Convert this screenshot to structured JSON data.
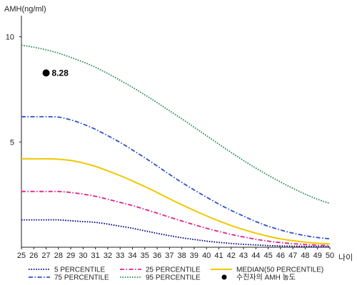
{
  "chart_data": {
    "type": "line",
    "ylabel": "AMH(ng/ml)",
    "xlabel": "나이",
    "x": [
      25,
      26,
      27,
      28,
      29,
      30,
      31,
      32,
      33,
      34,
      35,
      36,
      37,
      38,
      39,
      40,
      41,
      42,
      43,
      44,
      45,
      46,
      47,
      48,
      49,
      50
    ],
    "xlim": [
      25,
      50
    ],
    "ylim": [
      0,
      11
    ],
    "yticks": [
      5,
      10
    ],
    "grid": false,
    "legend_position": "bottom",
    "series": [
      {
        "name": "5 PERCENTILE",
        "color": "#000080",
        "dash": "dotted",
        "values": [
          1.3,
          1.3,
          1.3,
          1.3,
          1.26,
          1.22,
          1.18,
          1.1,
          1.0,
          0.9,
          0.78,
          0.66,
          0.55,
          0.45,
          0.37,
          0.29,
          0.23,
          0.18,
          0.14,
          0.11,
          0.08,
          0.06,
          0.05,
          0.04,
          0.03,
          0.03
        ]
      },
      {
        "name": "25 PERCENTILE",
        "color": "#e0208a",
        "dash": "dash-dot",
        "values": [
          2.65,
          2.65,
          2.65,
          2.65,
          2.6,
          2.52,
          2.42,
          2.28,
          2.13,
          1.98,
          1.8,
          1.62,
          1.43,
          1.25,
          1.07,
          0.9,
          0.75,
          0.61,
          0.49,
          0.38,
          0.29,
          0.22,
          0.17,
          0.13,
          0.1,
          0.08
        ]
      },
      {
        "name": "MEDIAN(50 PERCENTILE)",
        "color": "#f0c800",
        "dash": "solid",
        "values": [
          4.2,
          4.2,
          4.2,
          4.18,
          4.12,
          4.0,
          3.84,
          3.63,
          3.4,
          3.15,
          2.88,
          2.6,
          2.3,
          2.02,
          1.75,
          1.49,
          1.25,
          1.03,
          0.84,
          0.67,
          0.52,
          0.4,
          0.31,
          0.24,
          0.19,
          0.16
        ]
      },
      {
        "name": "75 PERCENTILE",
        "color": "#3050c8",
        "dash": "dash-dot",
        "values": [
          6.2,
          6.2,
          6.2,
          6.18,
          6.05,
          5.85,
          5.6,
          5.3,
          4.98,
          4.62,
          4.25,
          3.86,
          3.46,
          3.08,
          2.72,
          2.38,
          2.05,
          1.75,
          1.48,
          1.22,
          1.0,
          0.82,
          0.67,
          0.55,
          0.46,
          0.4
        ]
      },
      {
        "name": "95 PERCENTILE",
        "color": "#2a8a55",
        "dash": "dotted",
        "values": [
          9.6,
          9.5,
          9.38,
          9.22,
          9.02,
          8.8,
          8.55,
          8.25,
          7.93,
          7.6,
          7.24,
          6.87,
          6.48,
          6.1,
          5.7,
          5.3,
          4.9,
          4.5,
          4.12,
          3.76,
          3.42,
          3.1,
          2.8,
          2.52,
          2.28,
          2.08
        ]
      }
    ],
    "point": {
      "name": "수진자의 AMH 농도",
      "x": 27,
      "y": 8.28,
      "label": "8.28",
      "color": "#000000"
    },
    "axis_color": "#222222"
  }
}
